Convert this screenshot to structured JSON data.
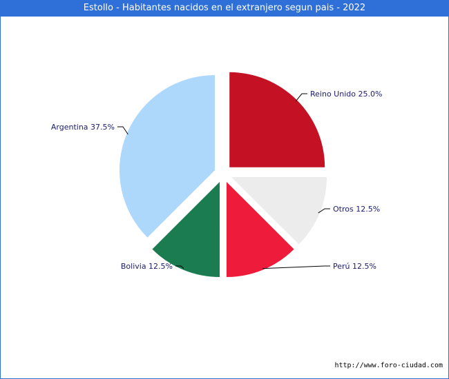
{
  "title": "Estollo - Habitantes nacidos en el extranjero segun pais - 2022",
  "source": "http://www.foro-ciudad.com",
  "chart_data": {
    "type": "pie",
    "title": "Estollo - Habitantes nacidos en el extranjero segun pais - 2022",
    "slices": [
      {
        "label": "Reino Unido",
        "value": 25.0,
        "display": "Reino Unido 25.0%",
        "color": "#c41224"
      },
      {
        "label": "Otros",
        "value": 12.5,
        "display": "Otros 12.5%",
        "color": "#ececec"
      },
      {
        "label": "Perú",
        "value": 12.5,
        "display": "Perú 12.5%",
        "color": "#ee1b3b"
      },
      {
        "label": "Bolivia",
        "value": 12.5,
        "display": "Bolivia 12.5%",
        "color": "#1a7c50"
      },
      {
        "label": "Argentina",
        "value": 37.5,
        "display": "Argentina 37.5%",
        "color": "#add8fb"
      }
    ]
  }
}
